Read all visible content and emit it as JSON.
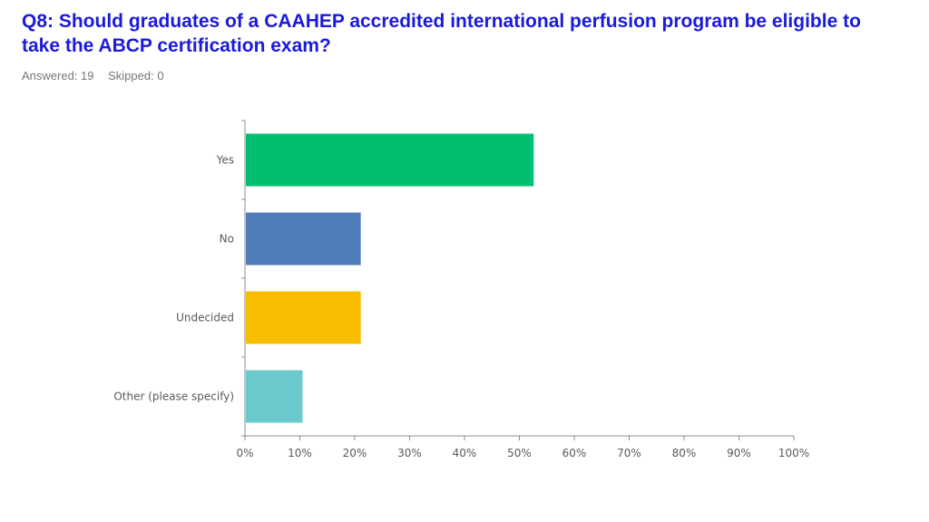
{
  "header": {
    "title": "Q8: Should graduates of a CAAHEP accredited international perfusion program be eligible to take the ABCP certification exam?",
    "answered": "Answered: 19",
    "skipped": "Skipped: 0"
  },
  "chart_data": {
    "type": "bar",
    "orientation": "horizontal",
    "categories": [
      "Yes",
      "No",
      "Undecided",
      "Other (please specify)"
    ],
    "values": [
      52.6,
      21.1,
      21.1,
      10.5
    ],
    "unit": "%",
    "xlim": [
      0,
      100
    ],
    "xticks": [
      "0%",
      "10%",
      "20%",
      "30%",
      "40%",
      "50%",
      "60%",
      "70%",
      "80%",
      "90%",
      "100%"
    ],
    "colors": [
      "#00c070",
      "#507cba",
      "#f8bd00",
      "#6ccace"
    ],
    "grid": false
  }
}
